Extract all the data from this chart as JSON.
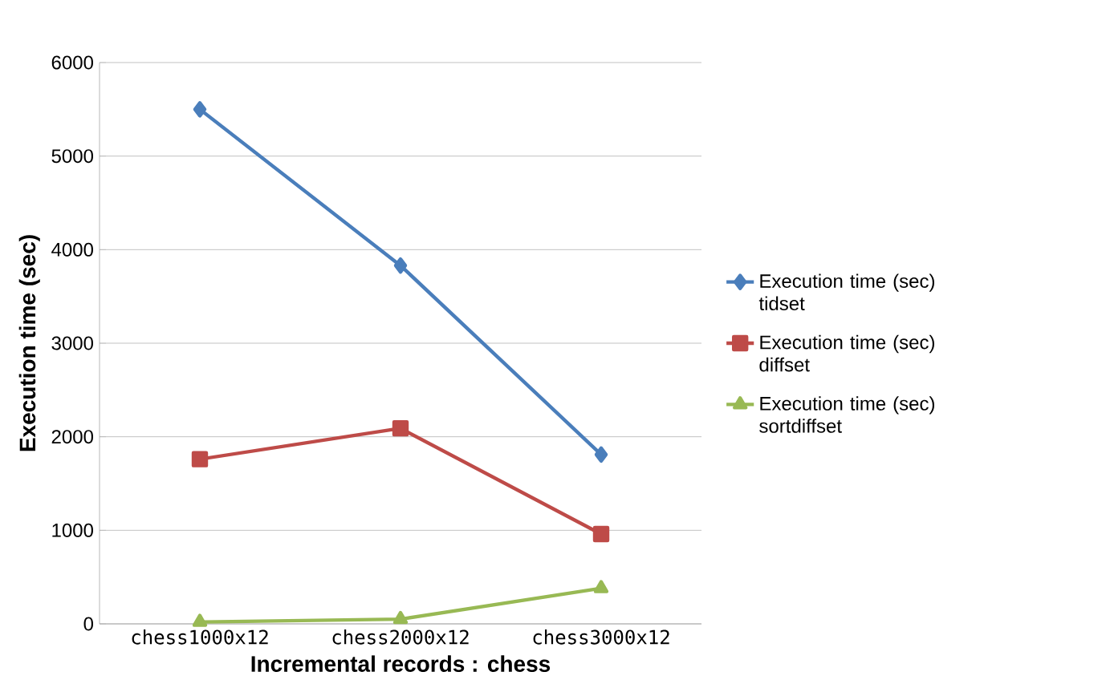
{
  "chart_data": {
    "type": "line",
    "xlabel": "Incremental records : chess",
    "ylabel": "Execution time (sec)",
    "categories": [
      "chess1000x12",
      "chess2000x12",
      "chess3000x12"
    ],
    "series": [
      {
        "name": "Execution time (sec) tidset",
        "color": "#4a7ebb",
        "marker": "diamond",
        "values": [
          5500,
          3830,
          1810
        ]
      },
      {
        "name": "Execution time (sec) diffset",
        "color": "#be4b48",
        "marker": "square",
        "values": [
          1760,
          2090,
          960
        ]
      },
      {
        "name": "Execution time (sec) sortdiffset",
        "color": "#98b954",
        "marker": "triangle",
        "values": [
          20,
          50,
          380
        ]
      }
    ],
    "ylim": [
      0,
      6000
    ],
    "yticks": [
      0,
      1000,
      2000,
      3000,
      4000,
      5000,
      6000
    ],
    "grid": "y",
    "legend": "right",
    "line_style": "solid"
  }
}
